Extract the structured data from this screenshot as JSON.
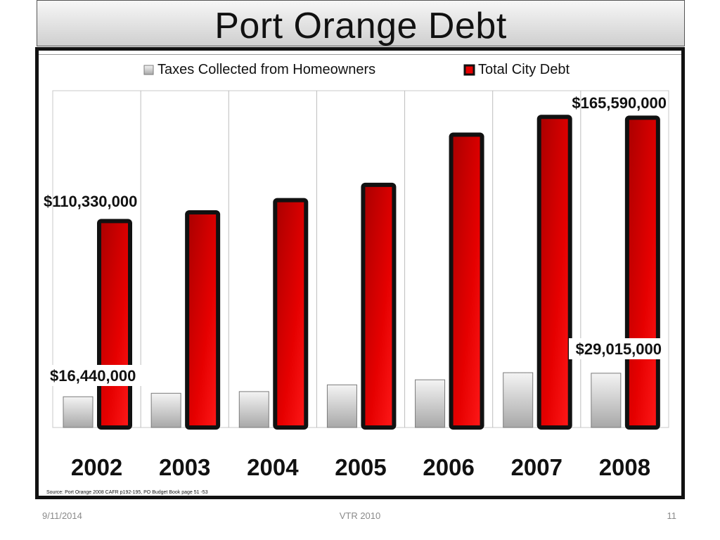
{
  "slide": {
    "title": "Port Orange Debt",
    "source": "Source: Port Orange 2008 CAFR p192-195, PO Budget Book page 51 -53",
    "footer": {
      "date": "9/11/2014",
      "center": "VTR 2010",
      "page": "11"
    }
  },
  "colors": {
    "taxes": "#c8c8c8",
    "debt": "#e60000",
    "outline": "#111111"
  },
  "chart_data": {
    "type": "bar",
    "title": "",
    "xlabel": "",
    "ylabel": "",
    "categories": [
      "2002",
      "2003",
      "2004",
      "2005",
      "2006",
      "2007",
      "2008"
    ],
    "series": [
      {
        "name": "Taxes Collected from Homeowners",
        "values": [
          16440000,
          18300000,
          19200000,
          22800000,
          25500000,
          29300000,
          29015000
        ]
      },
      {
        "name": "Total City Debt",
        "values": [
          110330000,
          115000000,
          121500000,
          129700000,
          156500000,
          166000000,
          165590000
        ]
      }
    ],
    "annotations": [
      {
        "series": 1,
        "index": 0,
        "text": "$110,330,000"
      },
      {
        "series": 1,
        "index": 6,
        "text": "$165,590,000"
      },
      {
        "series": 0,
        "index": 0,
        "text": "$16,440,000"
      },
      {
        "series": 0,
        "index": 6,
        "text": "$29,015,000"
      }
    ],
    "ylim": [
      0,
      180000000
    ],
    "grid": "vertical category lines",
    "legend": "top-center"
  }
}
